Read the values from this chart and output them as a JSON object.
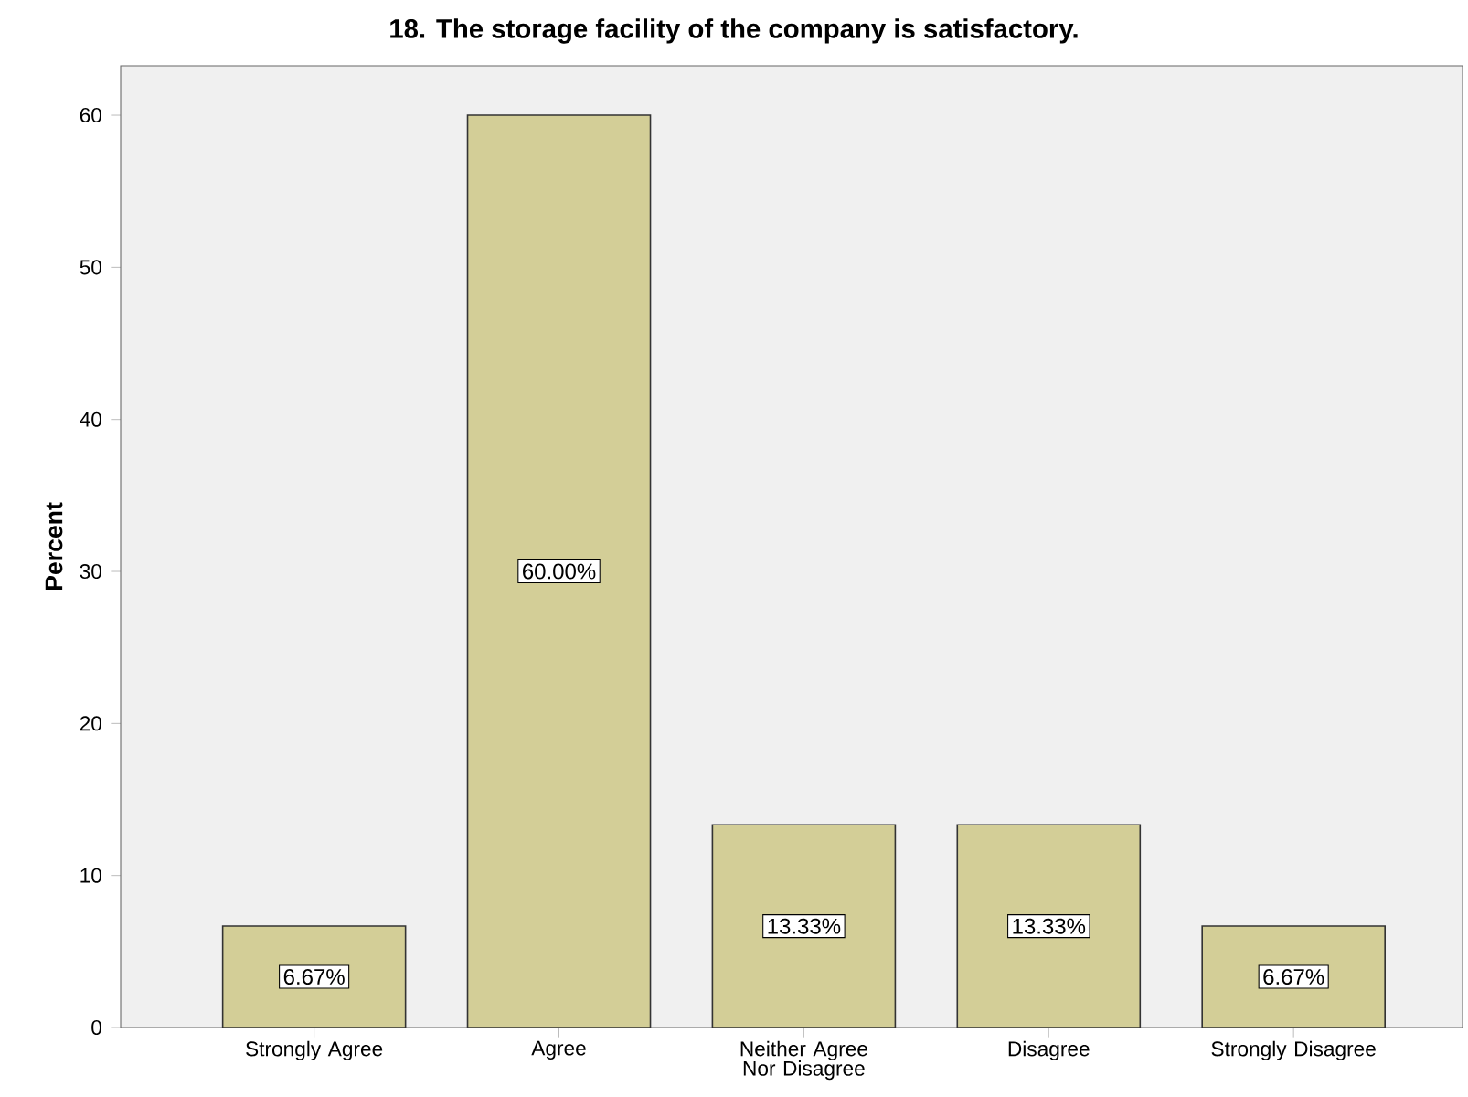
{
  "chart_data": {
    "type": "bar",
    "title": "18. The storage facility of the company is satisfactory.",
    "ylabel": "Percent",
    "categories": [
      "Strongly Agree",
      "Agree",
      "Neither Agree Nor Disagree",
      "Disagree",
      "Strongly Disagree"
    ],
    "values": [
      6.67,
      60.0,
      13.33,
      13.33,
      6.67
    ],
    "value_labels": [
      "6.67%",
      "60.00%",
      "13.33%",
      "13.33%",
      "6.67%"
    ],
    "color": "#d3ce97",
    "ylim": [
      0,
      63.25
    ],
    "yticks": [
      0,
      10,
      20,
      30,
      40,
      50,
      60
    ],
    "grid": false
  }
}
